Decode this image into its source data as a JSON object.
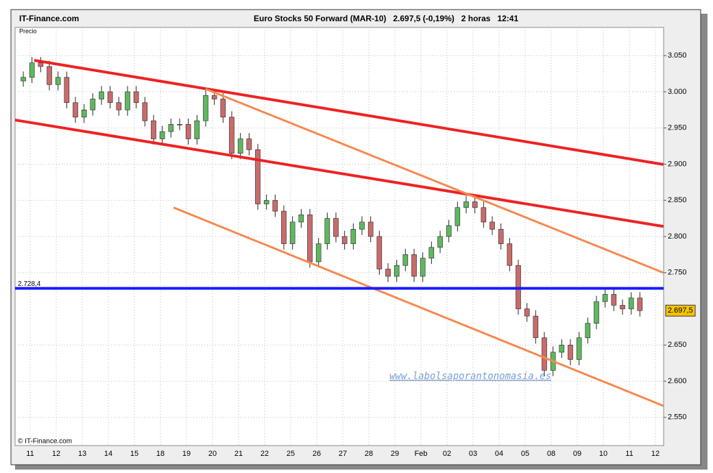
{
  "header": {
    "site": "IT-Finance.com",
    "info": "Euro Stocks 50 Forward (MAR-10)   2.697,5 (-0,19%)   2 horas   12:41"
  },
  "chart_data": {
    "type": "candlestick",
    "panel_label": "Precio",
    "copyright": "© IT-Finance.com",
    "watermark": "www.labolsaporantonomasia.es",
    "categories": [
      "11",
      null,
      null,
      "12",
      null,
      null,
      "13",
      null,
      null,
      "14",
      null,
      null,
      "15",
      null,
      null,
      "18",
      null,
      null,
      "19",
      null,
      null,
      "20",
      null,
      null,
      "21",
      null,
      null,
      "22",
      null,
      null,
      "25",
      null,
      null,
      "26",
      null,
      null,
      "27",
      null,
      null,
      "28",
      null,
      null,
      "29",
      null,
      null,
      "Feb",
      null,
      null,
      "02",
      null,
      null,
      "03",
      null,
      null,
      "04",
      null,
      null,
      "05",
      null,
      null,
      "08",
      null,
      null,
      "09",
      null,
      null,
      "10",
      null,
      null,
      "11",
      null,
      null,
      "12",
      null,
      null
    ],
    "open": [
      3015,
      3020,
      3040,
      3035,
      3010,
      3020,
      2985,
      2965,
      2975,
      2990,
      3000,
      2985,
      2975,
      3000,
      2985,
      2960,
      2935,
      2945,
      2955,
      2955,
      2935,
      2960,
      2995,
      2990,
      2965,
      2915,
      2935,
      2920,
      2845,
      2850,
      2835,
      2790,
      2820,
      2830,
      2765,
      2790,
      2825,
      2800,
      2790,
      2810,
      2820,
      2800,
      2755,
      2745,
      2760,
      2775,
      2745,
      2770,
      2785,
      2800,
      2815,
      2840,
      2848,
      2840,
      2820,
      2810,
      2790,
      2760,
      2700,
      2690,
      2660,
      2615,
      2640,
      2650,
      2630,
      2660,
      2680,
      2710,
      2720,
      2705,
      2700,
      2715,
      null,
      null,
      null
    ],
    "high": [
      3028,
      3048,
      3048,
      3043,
      3028,
      3028,
      2993,
      2983,
      2998,
      3008,
      3008,
      2993,
      3008,
      3008,
      2993,
      2968,
      2953,
      2963,
      2963,
      2963,
      2968,
      3003,
      3003,
      2998,
      2973,
      2943,
      2943,
      2928,
      2858,
      2858,
      2843,
      2828,
      2838,
      2838,
      2798,
      2833,
      2833,
      2808,
      2818,
      2828,
      2828,
      2808,
      2763,
      2768,
      2783,
      2783,
      2778,
      2793,
      2808,
      2823,
      2848,
      2856,
      2856,
      2848,
      2828,
      2818,
      2798,
      2768,
      2708,
      2698,
      2668,
      2648,
      2658,
      2658,
      2668,
      2688,
      2718,
      2728,
      2728,
      2713,
      2723,
      2723,
      null,
      null,
      null
    ],
    "low": [
      3007,
      3012,
      3027,
      3002,
      3002,
      2977,
      2957,
      2957,
      2967,
      2982,
      2977,
      2967,
      2967,
      2977,
      2952,
      2927,
      2927,
      2937,
      2947,
      2927,
      2927,
      2952,
      2982,
      2957,
      2907,
      2907,
      2912,
      2837,
      2837,
      2827,
      2782,
      2782,
      2812,
      2757,
      2757,
      2782,
      2792,
      2782,
      2782,
      2802,
      2792,
      2747,
      2737,
      2737,
      2752,
      2737,
      2737,
      2762,
      2777,
      2792,
      2807,
      2832,
      2832,
      2812,
      2802,
      2782,
      2752,
      2692,
      2682,
      2652,
      2607,
      2607,
      2632,
      2622,
      2622,
      2652,
      2672,
      2702,
      2697,
      2692,
      2692,
      2689.5,
      null,
      null,
      null
    ],
    "close": [
      3020,
      3040,
      3035,
      3010,
      3020,
      2985,
      2965,
      2975,
      2990,
      3000,
      2985,
      2975,
      3000,
      2985,
      2960,
      2935,
      2945,
      2955,
      2955,
      2935,
      2960,
      2995,
      2990,
      2965,
      2915,
      2935,
      2920,
      2845,
      2850,
      2835,
      2790,
      2820,
      2830,
      2765,
      2790,
      2825,
      2800,
      2790,
      2810,
      2820,
      2800,
      2755,
      2745,
      2760,
      2775,
      2745,
      2770,
      2785,
      2800,
      2815,
      2840,
      2848,
      2840,
      2820,
      2810,
      2790,
      2760,
      2700,
      2690,
      2660,
      2615,
      2640,
      2650,
      2630,
      2660,
      2680,
      2710,
      2720,
      2705,
      2700,
      2715,
      2697.5,
      null,
      null,
      null
    ],
    "up_color": "#5fb85f",
    "down_color": "#c96b6b",
    "ylim": [
      2511,
      3089
    ],
    "yticks": [
      {
        "value": 3050,
        "label": "3.050"
      },
      {
        "value": 3000,
        "label": "3.000"
      },
      {
        "value": 2950,
        "label": "2.950"
      },
      {
        "value": 2900,
        "label": "2.900"
      },
      {
        "value": 2850,
        "label": "2.850"
      },
      {
        "value": 2800,
        "label": "2.800"
      },
      {
        "value": 2750,
        "label": "2.750"
      },
      {
        "value": 2650,
        "label": "2.650"
      },
      {
        "value": 2600,
        "label": "2.600"
      },
      {
        "value": 2550,
        "label": "2.550"
      }
    ],
    "grid": true,
    "level": {
      "value": 2728.4,
      "label": "2.728,4",
      "color": "#1a1aff"
    },
    "last_price": {
      "value": 2697.5,
      "label": "2.697,5"
    },
    "trendlines": [
      {
        "color": "#ee2222",
        "x": [
          1.26,
          73.7
        ],
        "y": [
          3043.5,
          2899.6
        ]
      },
      {
        "color": "#ee2222",
        "x": [
          -0.95,
          73.7
        ],
        "y": [
          2961,
          2814
        ]
      },
      {
        "color": "#f5894f",
        "x": [
          21,
          73.7
        ],
        "y": [
          3004,
          2750
        ]
      },
      {
        "color": "#f5894f",
        "x": [
          17.3,
          73.7
        ],
        "y": [
          2840,
          2566
        ]
      }
    ]
  }
}
